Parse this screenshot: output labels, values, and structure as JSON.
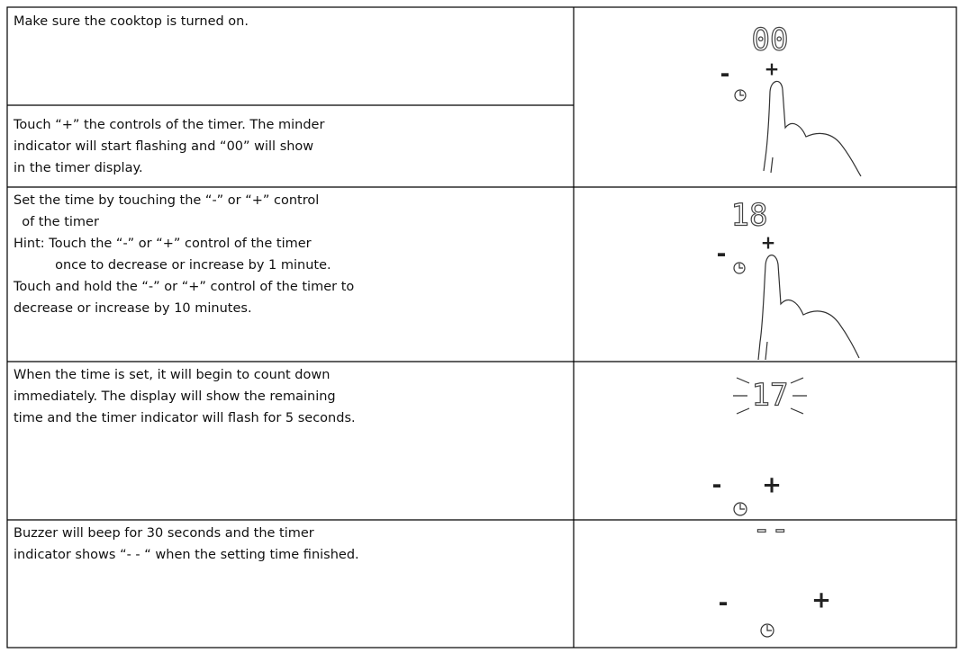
{
  "rows": [
    {
      "text": [
        "Make sure the cooktop is turned on."
      ]
    },
    {
      "text": [
        "Touch “+” the controls of the timer. The minder",
        "indicator will start flashing and “00” will show",
        "in the timer display."
      ]
    },
    {
      "text": [
        "Set the time by touching the “-” or “+” control",
        "  of the timer",
        "Hint: Touch the “-” or “+” control of the timer",
        "          once to decrease or increase by 1 minute.",
        "Touch and hold the “-” or “+” control of the timer to",
        "decrease or increase by 10 minutes."
      ]
    },
    {
      "text": [
        "When the time is set, it will begin to count down",
        "immediately. The display will show the remaining",
        "time and the timer indicator will flash for 5 seconds."
      ]
    },
    {
      "text": [
        "Buzzer will beep for 30 seconds and the timer",
        "indicator shows “- - “ when the setting time finished."
      ]
    }
  ],
  "illustrations": [
    {
      "display": "00",
      "minus": "-",
      "plus": "+"
    },
    {
      "display": "18",
      "minus": "-",
      "plus": "+"
    },
    {
      "display": "17",
      "minus": "-",
      "plus": "+"
    },
    {
      "display": "--",
      "minus": "-",
      "plus": "+"
    }
  ]
}
